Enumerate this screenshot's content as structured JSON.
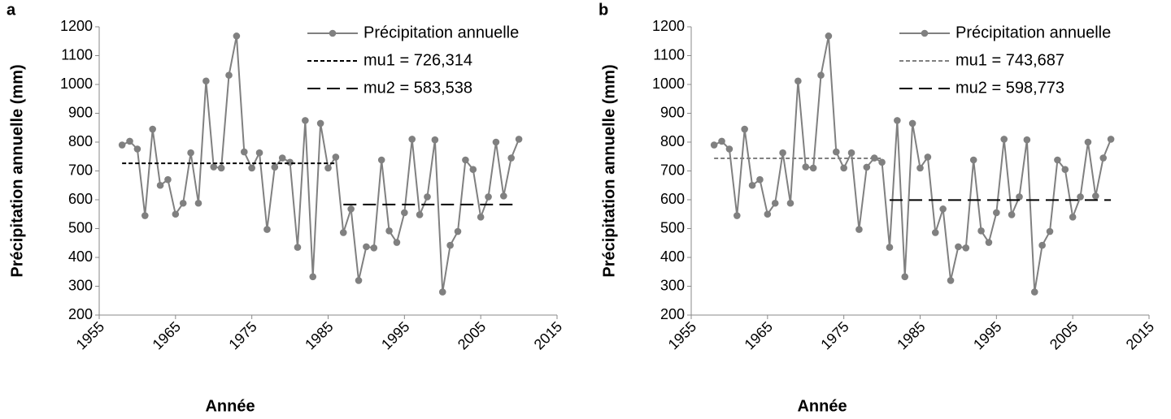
{
  "chart_data": [
    {
      "type": "line",
      "panel": "a",
      "xlabel": "Année",
      "ylabel": "Précipitation annuelle (mm)",
      "x": [
        1958,
        1959,
        1960,
        1961,
        1962,
        1963,
        1964,
        1965,
        1966,
        1967,
        1968,
        1969,
        1970,
        1971,
        1972,
        1973,
        1974,
        1975,
        1976,
        1977,
        1978,
        1979,
        1980,
        1981,
        1982,
        1983,
        1984,
        1985,
        1986,
        1987,
        1988,
        1989,
        1990,
        1991,
        1992,
        1993,
        1994,
        1995,
        1996,
        1997,
        1998,
        1999,
        2000,
        2001,
        2002,
        2003,
        2004,
        2005,
        2006,
        2007,
        2008,
        2009,
        2010
      ],
      "series": [
        {
          "name": "Précipitation annuelle",
          "color": "#808080",
          "markers": true,
          "dash": "solid",
          "values": [
            790,
            803,
            776,
            545,
            845,
            650,
            670,
            550,
            588,
            763,
            588,
            1012,
            714,
            710,
            1032,
            1168,
            766,
            710,
            763,
            497,
            713,
            745,
            730,
            435,
            875,
            333,
            865,
            710,
            748,
            486,
            568,
            320,
            437,
            433,
            738,
            492,
            452,
            555,
            810,
            548,
            610,
            808,
            280,
            442,
            490,
            738,
            705,
            540,
            610,
            800,
            613,
            745,
            810
          ]
        },
        {
          "name": "mu1 = 726,314",
          "color": "#000000",
          "markers": false,
          "dash": "short",
          "x": [
            1958,
            1986
          ],
          "values": [
            726.314,
            726.314
          ]
        },
        {
          "name": "mu2 = 583,538",
          "color": "#000000",
          "markers": false,
          "dash": "long",
          "x": [
            1987,
            2010
          ],
          "values": [
            583.538,
            583.538
          ]
        }
      ],
      "xlim": [
        1955,
        2015
      ],
      "xticks": [
        1955,
        1965,
        1975,
        1985,
        1995,
        2005,
        2015
      ],
      "ylim": [
        200,
        1200
      ],
      "yticks": [
        200,
        300,
        400,
        500,
        600,
        700,
        800,
        900,
        1000,
        1100,
        1200
      ]
    },
    {
      "type": "line",
      "panel": "b",
      "xlabel": "Année",
      "ylabel": "Précipitation annuelle (mm)",
      "x": [
        1958,
        1959,
        1960,
        1961,
        1962,
        1963,
        1964,
        1965,
        1966,
        1967,
        1968,
        1969,
        1970,
        1971,
        1972,
        1973,
        1974,
        1975,
        1976,
        1977,
        1978,
        1979,
        1980,
        1981,
        1982,
        1983,
        1984,
        1985,
        1986,
        1987,
        1988,
        1989,
        1990,
        1991,
        1992,
        1993,
        1994,
        1995,
        1996,
        1997,
        1998,
        1999,
        2000,
        2001,
        2002,
        2003,
        2004,
        2005,
        2006,
        2007,
        2008,
        2009,
        2010
      ],
      "series": [
        {
          "name": "Précipitation annuelle",
          "color": "#808080",
          "markers": true,
          "dash": "solid",
          "values": [
            790,
            803,
            776,
            545,
            845,
            650,
            670,
            550,
            588,
            763,
            588,
            1012,
            714,
            710,
            1032,
            1168,
            766,
            710,
            763,
            497,
            713,
            745,
            730,
            435,
            875,
            333,
            865,
            710,
            748,
            486,
            568,
            320,
            437,
            433,
            738,
            492,
            452,
            555,
            810,
            548,
            610,
            808,
            280,
            442,
            490,
            738,
            705,
            540,
            610,
            800,
            613,
            745,
            810
          ]
        },
        {
          "name": "mu1 = 743,687",
          "color": "#808080",
          "markers": false,
          "dash": "short",
          "x": [
            1958,
            1980
          ],
          "values": [
            743.687,
            743.687
          ]
        },
        {
          "name": "mu2 = 598,773",
          "color": "#000000",
          "markers": false,
          "dash": "long",
          "x": [
            1981,
            2010
          ],
          "values": [
            598.773,
            598.773
          ]
        }
      ],
      "xlim": [
        1955,
        2015
      ],
      "xticks": [
        1955,
        1965,
        1975,
        1985,
        1995,
        2005,
        2015
      ],
      "ylim": [
        200,
        1200
      ],
      "yticks": [
        200,
        300,
        400,
        500,
        600,
        700,
        800,
        900,
        1000,
        1100,
        1200
      ]
    }
  ]
}
